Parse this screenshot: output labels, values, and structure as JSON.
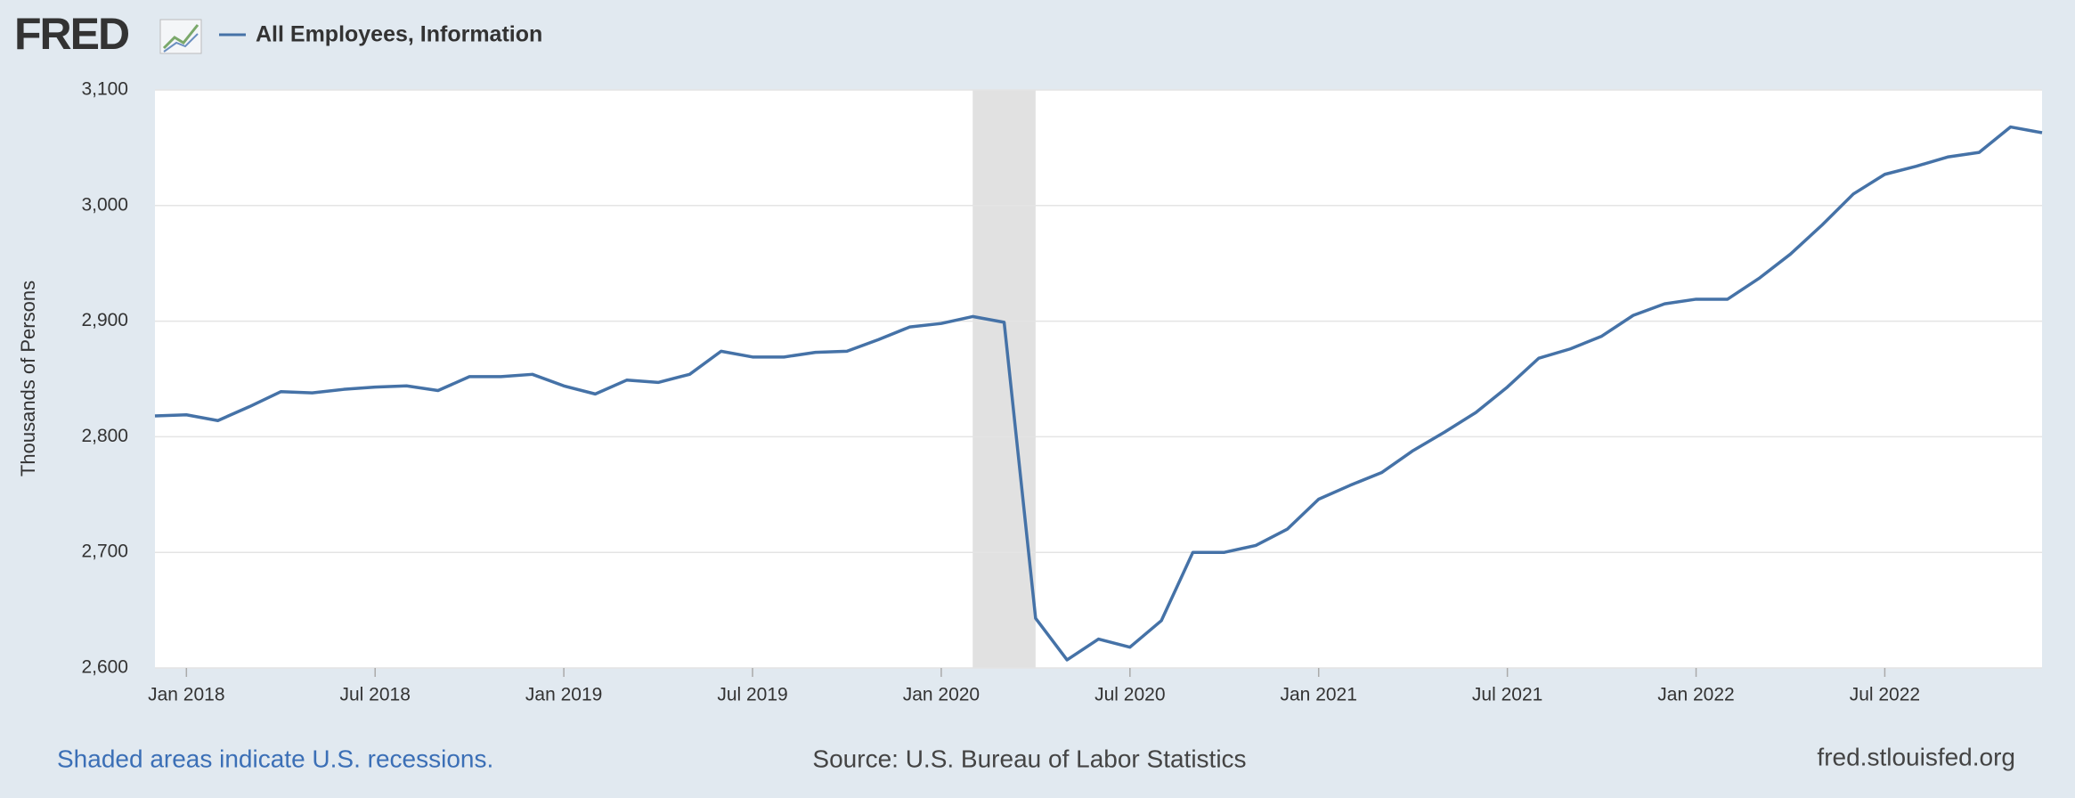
{
  "header": {
    "logo": "FRED"
  },
  "chart_data": {
    "type": "line",
    "ylabel": "Thousands of Persons",
    "x": [
      "2017-12",
      "2018-01",
      "2018-02",
      "2018-03",
      "2018-04",
      "2018-05",
      "2018-06",
      "2018-07",
      "2018-08",
      "2018-09",
      "2018-10",
      "2018-11",
      "2018-12",
      "2019-01",
      "2019-02",
      "2019-03",
      "2019-04",
      "2019-05",
      "2019-06",
      "2019-07",
      "2019-08",
      "2019-09",
      "2019-10",
      "2019-11",
      "2019-12",
      "2020-01",
      "2020-02",
      "2020-03",
      "2020-04",
      "2020-05",
      "2020-06",
      "2020-07",
      "2020-08",
      "2020-09",
      "2020-10",
      "2020-11",
      "2020-12",
      "2021-01",
      "2021-02",
      "2021-03",
      "2021-04",
      "2021-05",
      "2021-06",
      "2021-07",
      "2021-08",
      "2021-09",
      "2021-10",
      "2021-11",
      "2021-12",
      "2022-01",
      "2022-02",
      "2022-03",
      "2022-04",
      "2022-05",
      "2022-06",
      "2022-07",
      "2022-08",
      "2022-09",
      "2022-10",
      "2022-11",
      "2022-12"
    ],
    "series": [
      {
        "name": "All Employees, Information",
        "color": "#4572a7",
        "values": [
          2818,
          2819,
          2814,
          2826,
          2839,
          2838,
          2841,
          2843,
          2844,
          2840,
          2852,
          2852,
          2854,
          2844,
          2837,
          2849,
          2847,
          2854,
          2874,
          2869,
          2869,
          2873,
          2874,
          2884,
          2895,
          2898,
          2904,
          2899,
          2643,
          2607,
          2625,
          2618,
          2641,
          2700,
          2700,
          2706,
          2720,
          2746,
          2758,
          2769,
          2788,
          2804,
          2821,
          2843,
          2868,
          2876,
          2887,
          2905,
          2915,
          2919,
          2919,
          2937,
          2958,
          2983,
          3010,
          3027,
          3034,
          3042,
          3046,
          3068,
          3063
        ]
      }
    ],
    "xlim": [
      "2017-12",
      "2022-12"
    ],
    "xticks": [
      {
        "value": "2018-01",
        "label": "Jan 2018"
      },
      {
        "value": "2018-07",
        "label": "Jul 2018"
      },
      {
        "value": "2019-01",
        "label": "Jan 2019"
      },
      {
        "value": "2019-07",
        "label": "Jul 2019"
      },
      {
        "value": "2020-01",
        "label": "Jan 2020"
      },
      {
        "value": "2020-07",
        "label": "Jul 2020"
      },
      {
        "value": "2021-01",
        "label": "Jan 2021"
      },
      {
        "value": "2021-07",
        "label": "Jul 2021"
      },
      {
        "value": "2022-01",
        "label": "Jan 2022"
      },
      {
        "value": "2022-07",
        "label": "Jul 2022"
      }
    ],
    "ylim": [
      2600,
      3100
    ],
    "yticks": [
      {
        "value": 2600,
        "label": "2,600"
      },
      {
        "value": 2700,
        "label": "2,700"
      },
      {
        "value": 2800,
        "label": "2,800"
      },
      {
        "value": 2900,
        "label": "2,900"
      },
      {
        "value": 3000,
        "label": "3,000"
      },
      {
        "value": 3100,
        "label": "3,100"
      }
    ],
    "grid": true,
    "recessions": [
      [
        "2020-02",
        "2020-04"
      ]
    ]
  },
  "footer": {
    "note": "Shaded areas indicate U.S. recessions.",
    "source": "Source: U.S. Bureau of Labor Statistics",
    "site": "fred.stlouisfed.org"
  }
}
